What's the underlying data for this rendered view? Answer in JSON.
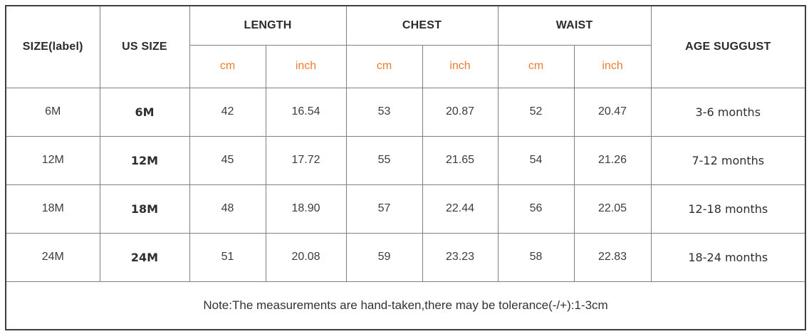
{
  "colors": {
    "accent_orange": "#ED7D31",
    "grid_line": "#808080",
    "outer_border": "#3f3f3f",
    "text": "#333333"
  },
  "table": {
    "header": {
      "size_label": "SIZE(label)",
      "us_size": "US SIZE",
      "groups": [
        {
          "label": "LENGTH"
        },
        {
          "label": "CHEST"
        },
        {
          "label": "WAIST"
        }
      ],
      "units": [
        "cm",
        "inch"
      ],
      "age": "AGE SUGGUST"
    },
    "rows": [
      {
        "size": "6M",
        "us": "6M",
        "length_cm": "42",
        "length_inch": "16.54",
        "chest_cm": "53",
        "chest_inch": "20.87",
        "waist_cm": "52",
        "waist_inch": "20.47",
        "age": "3-6 months"
      },
      {
        "size": "12M",
        "us": "12M",
        "length_cm": "45",
        "length_inch": "17.72",
        "chest_cm": "55",
        "chest_inch": "21.65",
        "waist_cm": "54",
        "waist_inch": "21.26",
        "age": "7-12 months"
      },
      {
        "size": "18M",
        "us": "18M",
        "length_cm": "48",
        "length_inch": "18.90",
        "chest_cm": "57",
        "chest_inch": "22.44",
        "waist_cm": "56",
        "waist_inch": "22.05",
        "age": "12-18 months"
      },
      {
        "size": "24M",
        "us": "24M",
        "length_cm": "51",
        "length_inch": "20.08",
        "chest_cm": "59",
        "chest_inch": "23.23",
        "waist_cm": "58",
        "waist_inch": "22.83",
        "age": "18-24 months"
      }
    ],
    "note": "Note:The measurements are hand-taken,there may be tolerance(-/+):1-3cm"
  }
}
